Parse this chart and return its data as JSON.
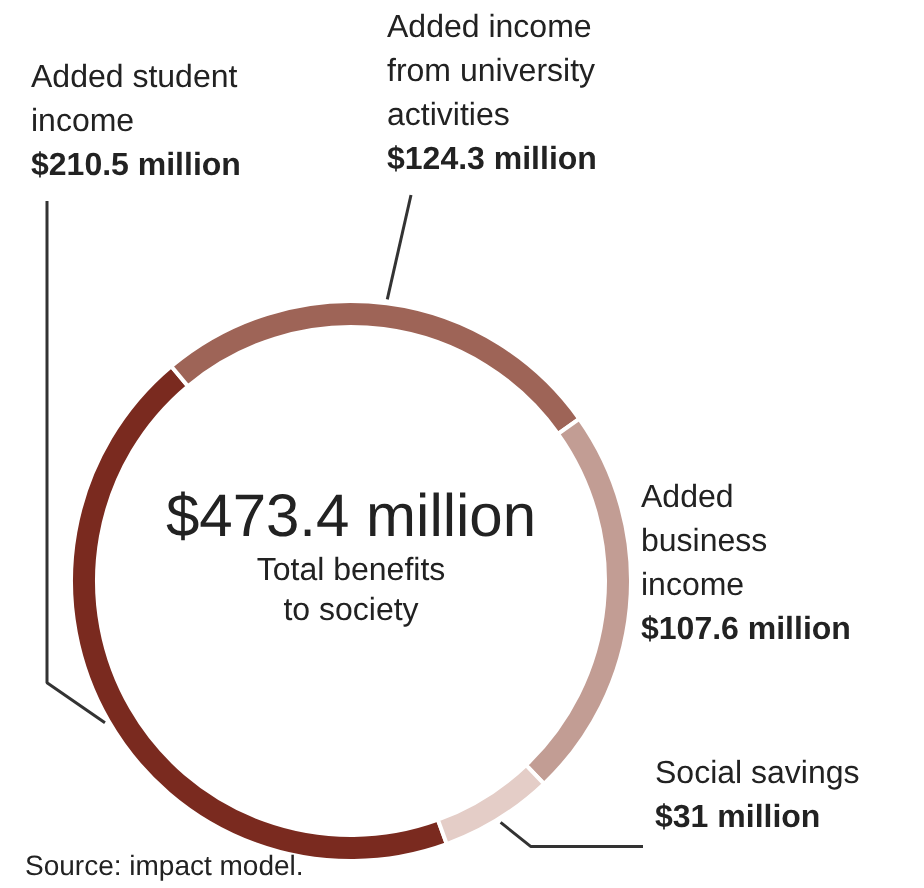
{
  "chart_data": {
    "type": "donut",
    "title": "$473.4 million",
    "subtitle": "Total benefits to society",
    "categories": [
      "Added student income",
      "Added income from university activities",
      "Added business income",
      "Social savings"
    ],
    "values": [
      210.5,
      124.3,
      107.6,
      31
    ],
    "colors": [
      "#7a2a1f",
      "#9e6457",
      "#c29d94",
      "#e4cdc7"
    ],
    "value_labels": [
      "$210.5 million",
      "$124.3 million",
      "$107.6 million",
      "$31 million"
    ],
    "annotations": [
      "Source: impact model."
    ]
  }
}
